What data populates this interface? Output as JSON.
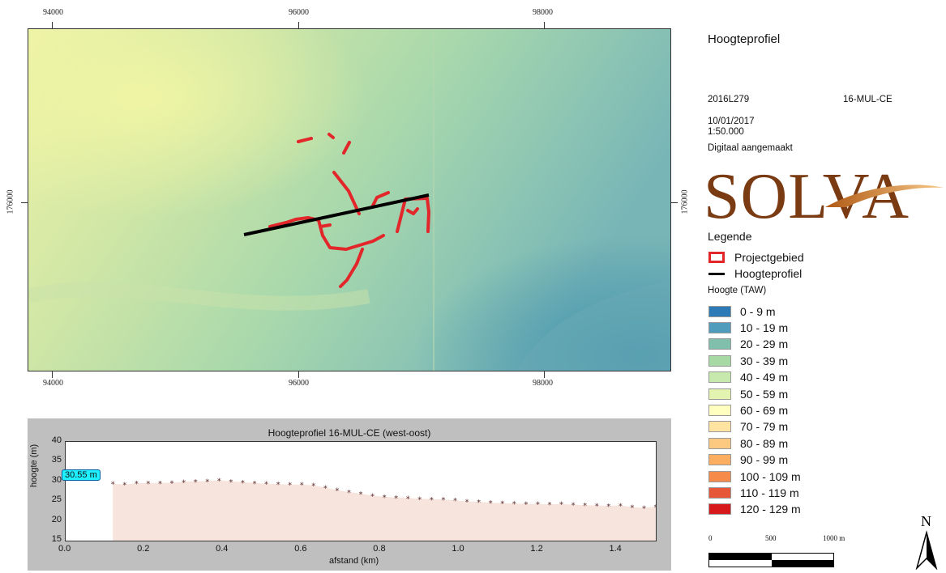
{
  "map": {
    "top_coords": [
      "94000",
      "96000",
      "98000"
    ],
    "bottom_coords": [
      "94000",
      "96000",
      "98000"
    ],
    "left_coord": "176000",
    "right_coord": "176000",
    "colors": {
      "project_area": "#e3262a",
      "profile_line": "#000000",
      "terrain_light": "#eef2a8",
      "terrain_dark": "#4e9eb0"
    }
  },
  "title": "Hoogteprofiel",
  "meta": {
    "code": "2016L279",
    "site": "16-MUL-CE",
    "date": "10/01/2017",
    "scale": "1:50.000",
    "note": "Digitaal aangemaakt"
  },
  "logo": {
    "text": "SOLVA",
    "color": "#7a3a12"
  },
  "legend": {
    "title": "Legende",
    "project_area": "Projectgebied",
    "profile_line": "Hoogteprofiel",
    "height_title": "Hoogte (TAW)",
    "classes": [
      {
        "label": "0 - 9 m",
        "color": "#2c7bb6"
      },
      {
        "label": "10 - 19 m",
        "color": "#4f9cbc"
      },
      {
        "label": "20 - 29 m",
        "color": "#7fbfac"
      },
      {
        "label": "30 - 39 m",
        "color": "#a6d9a4"
      },
      {
        "label": "40 - 49 m",
        "color": "#c7e9ad"
      },
      {
        "label": "50 - 59 m",
        "color": "#e3f4b0"
      },
      {
        "label": "60 - 69 m",
        "color": "#ffffbf"
      },
      {
        "label": "70 - 79 m",
        "color": "#fee4a0"
      },
      {
        "label": "80 - 89 m",
        "color": "#fdc980"
      },
      {
        "label": "90 - 99 m",
        "color": "#fdae61"
      },
      {
        "label": "100 - 109 m",
        "color": "#f58a4b"
      },
      {
        "label": "110 - 119 m",
        "color": "#e65639"
      },
      {
        "label": "120 - 129 m",
        "color": "#d7191c"
      }
    ]
  },
  "scalebar": {
    "labels": [
      "0",
      "500",
      "1000 m"
    ]
  },
  "north_label": "N",
  "chart_data": {
    "type": "scatter",
    "title": "Hoogteprofiel 16-MUL-CE (west-oost)",
    "xlabel": "afstand (km)",
    "ylabel": "hoogte (m)",
    "xlim": [
      0.0,
      1.5
    ],
    "ylim": [
      15,
      40
    ],
    "x_ticks": [
      "0.0",
      "0.2",
      "0.4",
      "0.6",
      "0.8",
      "1.0",
      "1.2",
      "1.4"
    ],
    "y_ticks": [
      "15",
      "20",
      "25",
      "30",
      "35",
      "40"
    ],
    "x": [
      0.12,
      0.15,
      0.18,
      0.21,
      0.24,
      0.27,
      0.3,
      0.33,
      0.36,
      0.39,
      0.42,
      0.45,
      0.48,
      0.51,
      0.54,
      0.57,
      0.6,
      0.63,
      0.66,
      0.69,
      0.72,
      0.75,
      0.78,
      0.81,
      0.84,
      0.87,
      0.9,
      0.93,
      0.96,
      0.99,
      1.02,
      1.05,
      1.08,
      1.11,
      1.14,
      1.17,
      1.2,
      1.23,
      1.26,
      1.29,
      1.32,
      1.35,
      1.38,
      1.41,
      1.44,
      1.47,
      1.5
    ],
    "y": [
      29.4,
      29.2,
      29.5,
      29.6,
      29.6,
      29.7,
      29.9,
      30.0,
      30.1,
      30.3,
      30.0,
      29.8,
      29.6,
      29.4,
      29.3,
      29.2,
      29.2,
      29.0,
      28.4,
      27.8,
      27.3,
      26.9,
      26.4,
      26.1,
      25.9,
      25.8,
      25.6,
      25.5,
      25.4,
      25.2,
      24.9,
      24.8,
      24.6,
      24.5,
      24.4,
      24.3,
      24.3,
      24.2,
      24.3,
      24.1,
      24.0,
      23.9,
      23.8,
      23.9,
      23.5,
      23.3,
      23.6
    ],
    "highlight_label": "30.55 m",
    "fill_color": "#f7e4dc",
    "marker_color": "#5a2a2a"
  }
}
